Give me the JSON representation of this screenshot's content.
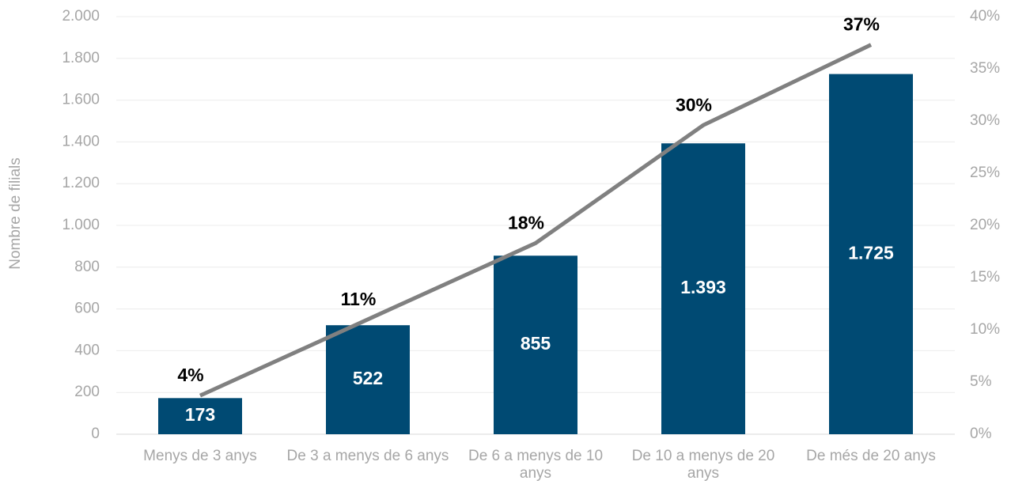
{
  "chart_data": {
    "type": "bar_line",
    "y_label": "Nombre de filials",
    "categories": [
      "Menys de 3 anys",
      "De 3 a menys de 6 anys",
      "De 6 a menys de 10 anys",
      "De 10 a menys de 20 anys",
      "De més de 20 anys"
    ],
    "series": [
      {
        "type": "bar",
        "color": "#004a73",
        "values": [
          173,
          522,
          855,
          1393,
          1725
        ],
        "value_labels": [
          "173",
          "522",
          "855",
          "1.393",
          "1.725"
        ]
      },
      {
        "type": "line",
        "axis": "y2",
        "color": "#808080",
        "values": [
          3.7,
          11,
          18.3,
          29.6,
          37.3
        ],
        "value_labels": [
          "4%",
          "11%",
          "18%",
          "30%",
          "37%"
        ]
      }
    ],
    "ylim": [
      0,
      2000
    ],
    "yticks": [
      0,
      200,
      400,
      600,
      800,
      {
        "value": 1000,
        "label": "1.000"
      },
      {
        "value": 1200,
        "label": "1.200"
      },
      {
        "value": 1400,
        "label": "1.400"
      },
      {
        "value": 1600,
        "label": "1.600"
      },
      {
        "value": 1800,
        "label": "1.800"
      },
      {
        "value": 2000,
        "label": "2.000"
      }
    ],
    "y2lim": [
      0,
      40
    ],
    "y2ticks": [
      {
        "value": 0,
        "label": "0%"
      },
      {
        "value": 5,
        "label": "5%"
      },
      {
        "value": 10,
        "label": "10%"
      },
      {
        "value": 15,
        "label": "15%"
      },
      {
        "value": 20,
        "label": "20%"
      },
      {
        "value": 25,
        "label": "25%"
      },
      {
        "value": 30,
        "label": "30%"
      },
      {
        "value": 35,
        "label": "35%"
      },
      {
        "value": 40,
        "label": "40%"
      }
    ],
    "grid": true
  }
}
